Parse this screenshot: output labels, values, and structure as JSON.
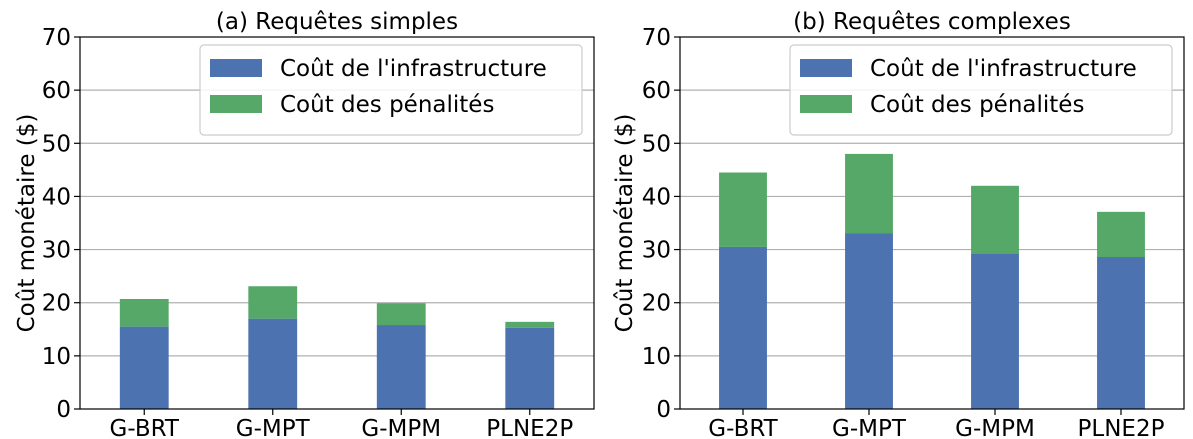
{
  "colors": {
    "infra": "#4c72b0",
    "penalty": "#55a868",
    "grid": "#b0b0b0"
  },
  "chart_data": [
    {
      "type": "bar",
      "stacked": true,
      "title": "(a) Requêtes simples",
      "ylabel": "Coût monétaire ($)",
      "ylim": [
        0,
        70
      ],
      "yticks": [
        0,
        10,
        20,
        30,
        40,
        50,
        60,
        70
      ],
      "grid": "y",
      "legend_position": "top-right",
      "categories": [
        "G-BRT",
        "G-MPT",
        "G-MPM",
        "PLNE2P"
      ],
      "series": [
        {
          "name": "Coût de l'infrastructure",
          "values": [
            15.5,
            17.0,
            15.8,
            15.3
          ]
        },
        {
          "name": "Coût des pénalités",
          "values": [
            5.2,
            6.1,
            4.1,
            1.1
          ]
        }
      ]
    },
    {
      "type": "bar",
      "stacked": true,
      "title": "(b) Requêtes complexes",
      "ylabel": "Coût monétaire ($)",
      "ylim": [
        0,
        70
      ],
      "yticks": [
        0,
        10,
        20,
        30,
        40,
        50,
        60,
        70
      ],
      "grid": "y",
      "legend_position": "top-right",
      "categories": [
        "G-BRT",
        "G-MPT",
        "G-MPM",
        "PLNE2P"
      ],
      "series": [
        {
          "name": "Coût de l'infrastructure",
          "values": [
            30.5,
            33.1,
            29.3,
            28.6
          ]
        },
        {
          "name": "Coût des pénalités",
          "values": [
            14.0,
            14.9,
            12.7,
            8.5
          ]
        }
      ]
    }
  ]
}
